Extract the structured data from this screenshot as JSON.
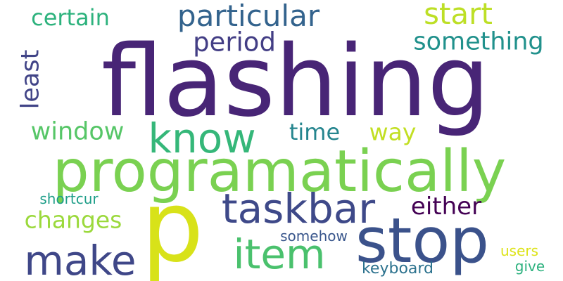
{
  "words": [
    {
      "text": "flashing",
      "color": "#482576"
    },
    {
      "text": "programatically",
      "color": "#7ad151"
    },
    {
      "text": "stop",
      "color": "#3b528b"
    },
    {
      "text": "p",
      "color": "#d8e219"
    },
    {
      "text": "taskbar",
      "color": "#3e4989"
    },
    {
      "text": "know",
      "color": "#35b779"
    },
    {
      "text": "item",
      "color": "#4ac16d"
    },
    {
      "text": "make",
      "color": "#3f4788"
    },
    {
      "text": "particular",
      "color": "#33638d"
    },
    {
      "text": "start",
      "color": "#bddf26"
    },
    {
      "text": "something",
      "color": "#21918c"
    },
    {
      "text": "certain",
      "color": "#2db27d"
    },
    {
      "text": "period",
      "color": "#433e85"
    },
    {
      "text": "least",
      "color": "#414487"
    },
    {
      "text": "window",
      "color": "#56c667"
    },
    {
      "text": "time",
      "color": "#25858e"
    },
    {
      "text": "way",
      "color": "#c2df23"
    },
    {
      "text": "either",
      "color": "#440154"
    },
    {
      "text": "changes",
      "color": "#9bd93c"
    },
    {
      "text": "shortcur",
      "color": "#1f9e89"
    },
    {
      "text": "somehow",
      "color": "#39568c"
    },
    {
      "text": "keyboard",
      "color": "#2c728e"
    },
    {
      "text": "users",
      "color": "#dde318"
    },
    {
      "text": "give",
      "color": "#2cb17e"
    }
  ]
}
